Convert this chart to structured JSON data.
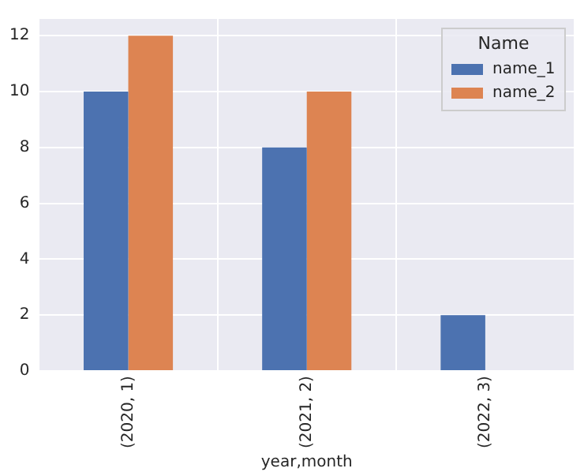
{
  "chart_data": {
    "type": "bar",
    "xlabel": "year,month",
    "legend_title": "Name",
    "categories": [
      "(2020, 1)",
      "(2021, 2)",
      "(2022, 3)"
    ],
    "series": [
      {
        "name": "name_1",
        "color": "#4c72b0",
        "values": [
          10,
          8,
          2
        ]
      },
      {
        "name": "name_2",
        "color": "#dd8452",
        "values": [
          12,
          10,
          null
        ]
      }
    ],
    "ylim": [
      0,
      12.6
    ],
    "yticks": [
      0,
      2,
      4,
      6,
      8,
      10,
      12
    ],
    "grid": true,
    "legend": "top right"
  }
}
